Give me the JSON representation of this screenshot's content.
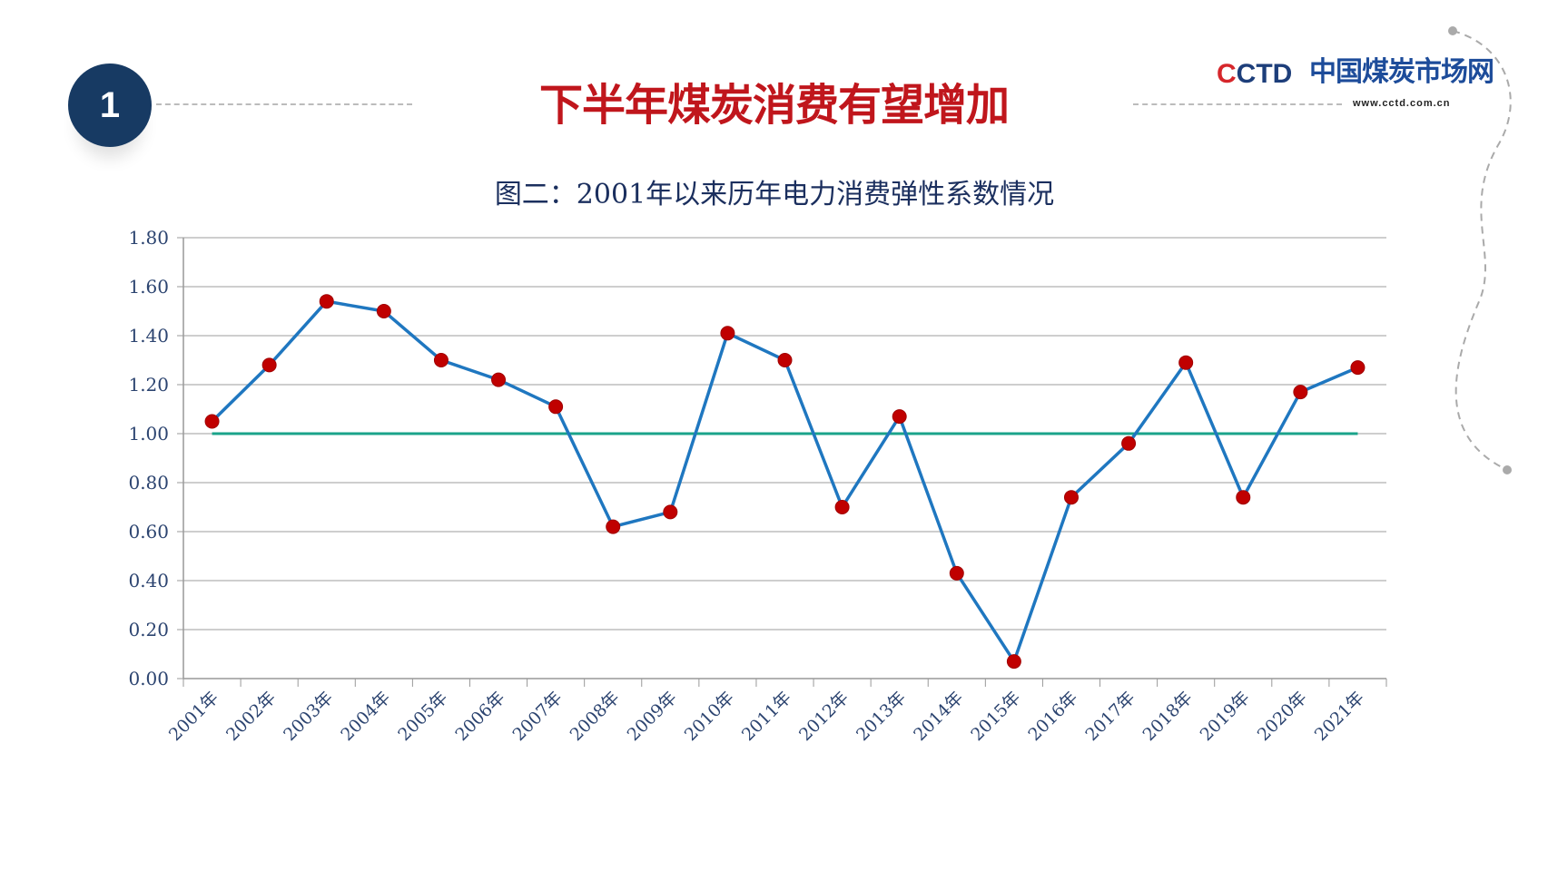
{
  "slide": {
    "number": "1",
    "title": "下半年煤炭消费有望增加",
    "logo": {
      "text": "CCTD",
      "name_cn": "中国煤炭市场网",
      "url": "www.cctd.com.cn"
    }
  },
  "colors": {
    "title": "#c0161c",
    "line": "#1f77c0",
    "marker": "#c00000",
    "reference": "#1aa38a",
    "badge": "#173a63"
  },
  "chart_data": {
    "type": "line",
    "title": "图二：2001年以来历年电力消费弹性系数情况",
    "categories": [
      "2001年",
      "2002年",
      "2003年",
      "2004年",
      "2005年",
      "2006年",
      "2007年",
      "2008年",
      "2009年",
      "2010年",
      "2011年",
      "2012年",
      "2013年",
      "2014年",
      "2015年",
      "2016年",
      "2017年",
      "2018年",
      "2019年",
      "2020年",
      "2021年"
    ],
    "series": [
      {
        "values": [
          1.05,
          1.28,
          1.54,
          1.5,
          1.3,
          1.22,
          1.11,
          0.62,
          0.68,
          1.41,
          1.3,
          0.7,
          1.07,
          0.43,
          0.07,
          0.74,
          0.96,
          1.29,
          0.74,
          1.17,
          1.27
        ]
      },
      {
        "values": [
          1.0,
          1.0,
          1.0,
          1.0,
          1.0,
          1.0,
          1.0,
          1.0,
          1.0,
          1.0,
          1.0,
          1.0,
          1.0,
          1.0,
          1.0,
          1.0,
          1.0,
          1.0,
          1.0,
          1.0,
          1.0
        ]
      }
    ],
    "yticks": [
      "0.00",
      "0.20",
      "0.40",
      "0.60",
      "0.80",
      "1.00",
      "1.20",
      "1.40",
      "1.60",
      "1.80"
    ],
    "ylim": [
      0,
      1.8
    ],
    "grid": true,
    "legend": "none"
  }
}
